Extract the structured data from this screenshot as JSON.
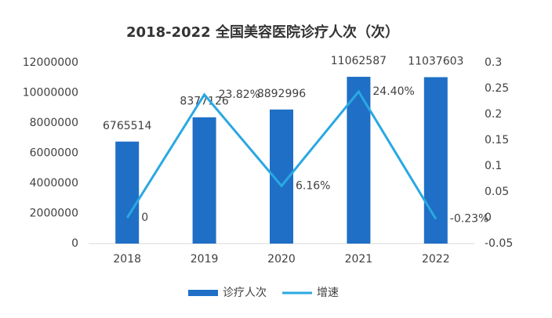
{
  "chart_data": {
    "type": "bar-line",
    "title": "2018-2022 全国美容医院诊疗人次（次）",
    "categories": [
      "2018",
      "2019",
      "2020",
      "2021",
      "2022"
    ],
    "series": [
      {
        "name": "诊疗人次",
        "type": "bar",
        "color": "#1f6fc6",
        "values": [
          6765514,
          8377126,
          8892996,
          11062587,
          11037603
        ]
      },
      {
        "name": "增速",
        "type": "line",
        "axis": "y2",
        "color": "#2aa8e2",
        "values": [
          0,
          0.2382,
          0.0616,
          0.244,
          -0.0023
        ],
        "value_labels": [
          "0",
          "23.82%",
          "6.16%",
          "24.40%",
          "-0.23%"
        ]
      }
    ],
    "ylim": [
      0,
      12000000
    ],
    "yticks": [
      0,
      2000000,
      4000000,
      6000000,
      8000000,
      10000000,
      12000000
    ],
    "y2lim": [
      -0.05,
      0.3
    ],
    "y2ticks": [
      -0.05,
      0,
      0.05,
      0.1,
      0.15,
      0.2,
      0.25,
      0.3
    ],
    "legend": "bottom"
  }
}
